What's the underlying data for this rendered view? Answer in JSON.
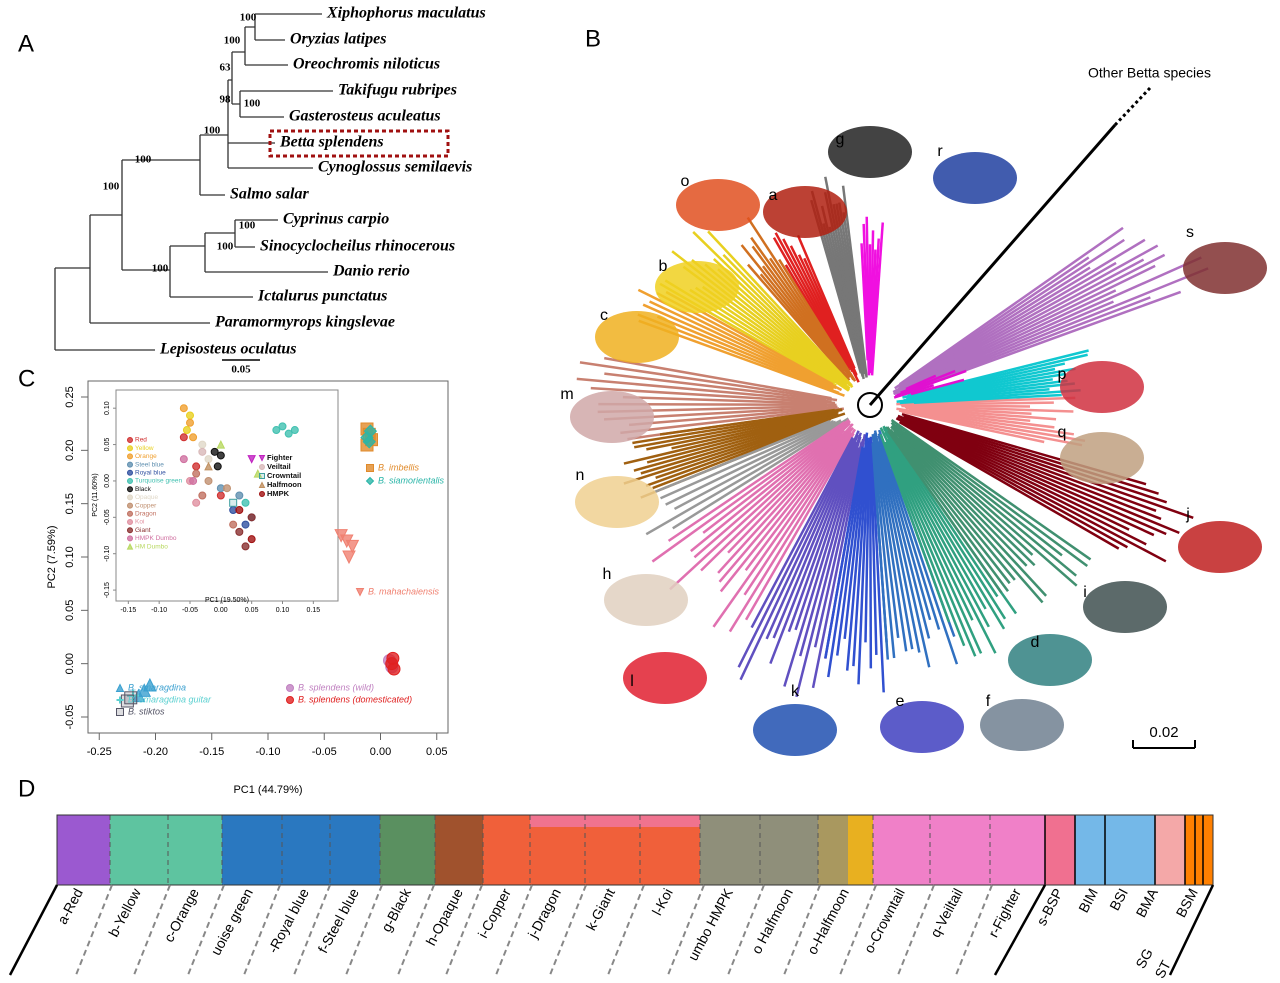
{
  "panels": {
    "A": {
      "label": "A",
      "species": [
        "Xiphophorus maculatus",
        "Oryzias latipes",
        "Oreochromis niloticus",
        "Takifugu rubripes",
        "Gasterosteus aculeatus",
        "Betta splendens",
        "Cynoglossus semilaevis",
        "Salmo salar",
        "Cyprinus carpio",
        "Sinocyclocheilus rhinocerous",
        "Danio rerio",
        "Ictalurus punctatus",
        "Paramormyrops kingslevae",
        "Lepisosteus oculatus"
      ],
      "bootstrap": [
        100,
        100,
        63,
        98,
        100,
        100,
        100,
        100,
        100,
        100,
        100
      ],
      "scale": "0.05"
    },
    "B": {
      "label": "B",
      "other": "Other Betta species",
      "scale": "0.02",
      "clades": [
        "o",
        "a",
        "g",
        "r",
        "s",
        "b",
        "c",
        "m",
        "n",
        "h",
        "l",
        "k",
        "e",
        "f",
        "d",
        "i",
        "j",
        "q",
        "p"
      ]
    },
    "C": {
      "label": "C"
    },
    "D": {
      "label": "D",
      "groups": [
        "a-Red",
        "b-Yellow",
        "c-Orange",
        "uoise green",
        "-Royal blue",
        "f-Steel blue",
        "g-Black",
        "h-Opaque",
        "i-Copper",
        "j-Dragon",
        "k-Giant",
        "l-Koi",
        "umbo HMPK",
        "o Halfmoon",
        "o-Halfmoon",
        "o-Crowntail",
        "q-Veiltail",
        "r-Fighter",
        "s-BSP",
        "BIM",
        "BSI",
        "BMA",
        "BSM",
        "SG",
        "ST"
      ]
    }
  },
  "chart_data": {
    "type": "scatter",
    "xlabel": "PC1 (44.79%)",
    "ylabel": "PC2 (7.59%)",
    "xlim": [
      -0.26,
      0.06
    ],
    "ylim": [
      -0.065,
      0.265
    ],
    "xticks": [
      -0.25,
      {
        "value": -0.2,
        "label": "-0.20"
      },
      -0.15,
      {
        "value": -0.1,
        "label": "-0.10"
      },
      -0.05,
      {
        "value": 0,
        "label": "0.00"
      },
      0.05
    ],
    "yticks": [
      -0.05,
      {
        "value": 0,
        "label": "0.00"
      },
      0.05,
      {
        "value": 0.1,
        "label": "0.10"
      },
      0.15,
      {
        "value": 0.2,
        "label": "0.20"
      },
      0.25
    ],
    "series": [
      {
        "name": "B. imbellis",
        "color": "#e08a2a",
        "marker": "square",
        "x": [
          -0.012,
          -0.01,
          -0.008,
          -0.012
        ],
        "y": [
          0.205,
          0.215,
          0.21,
          0.22
        ]
      },
      {
        "name": "B. siamorientalis",
        "color": "#2ab5a8",
        "marker": "diamond",
        "x": [
          -0.01,
          -0.012,
          -0.009
        ],
        "y": [
          0.208,
          0.212,
          0.218
        ]
      },
      {
        "name": "B. mahachaiensis",
        "color": "#f08070",
        "marker": "tridown",
        "x": [
          -0.035,
          -0.03,
          -0.025,
          -0.028
        ],
        "y": [
          0.12,
          0.115,
          0.11,
          0.1
        ]
      },
      {
        "name": "B. smaragdina",
        "color": "#3aa0d0",
        "marker": "triup",
        "x": [
          -0.21,
          -0.205,
          -0.215
        ],
        "y": [
          -0.025,
          -0.02,
          -0.03
        ]
      },
      {
        "name": "B. smaragdina guitar",
        "color": "#5ad0d0",
        "marker": "plus",
        "x": [
          -0.22
        ],
        "y": [
          -0.03
        ]
      },
      {
        "name": "B. stiktos",
        "color": "#556",
        "marker": "xsquare",
        "x": [
          -0.225,
          -0.222
        ],
        "y": [
          -0.035,
          -0.032
        ]
      },
      {
        "name": "B. splendens (wild)",
        "color": "#c080c0",
        "marker": "circle",
        "x": [
          0.008,
          0.01
        ],
        "y": [
          0.003,
          -0.003
        ]
      },
      {
        "name": "B. splendens (domesticated)",
        "color": "#e02020",
        "marker": "circle",
        "x": [
          0.01,
          0.012,
          0.011
        ],
        "y": [
          0,
          -0.005,
          0.005
        ]
      }
    ],
    "inset": {
      "xlabel": "PC1 (19.50%)",
      "ylabel": "PC2 (11.60%)",
      "xlim": [
        -0.17,
        0.19
      ],
      "ylim": [
        -0.165,
        0.125
      ],
      "xticks": [
        -0.15,
        {
          "value": -0.1,
          "label": "-0.10"
        },
        -0.05,
        {
          "value": 0,
          "label": "0.00"
        },
        0.05,
        {
          "value": 0.1,
          "label": "0.10"
        },
        0.15
      ],
      "yticks": [
        -0.15,
        {
          "value": -0.1,
          "label": "-0.10"
        },
        -0.05,
        {
          "value": 0,
          "label": "0.00"
        },
        0.05,
        {
          "value": 0.1,
          "label": "0.10"
        }
      ],
      "series": [
        {
          "name": "Red",
          "color": "#d03030",
          "marker": "circle",
          "x": [
            -0.06,
            -0.04,
            0.0
          ],
          "y": [
            0.06,
            0.02,
            -0.02
          ]
        },
        {
          "name": "Yellow",
          "color": "#e8d020",
          "marker": "circle",
          "x": [
            -0.05,
            -0.055
          ],
          "y": [
            0.09,
            0.07
          ]
        },
        {
          "name": "Orange",
          "color": "#f0a030",
          "marker": "circle",
          "x": [
            -0.06,
            -0.05,
            -0.045
          ],
          "y": [
            0.1,
            0.08,
            0.06
          ]
        },
        {
          "name": "Steel blue",
          "color": "#6090b0",
          "marker": "circle",
          "x": [
            0.0,
            0.03,
            0.05
          ],
          "y": [
            -0.01,
            -0.02,
            -0.05
          ]
        },
        {
          "name": "Royal blue",
          "color": "#3050a0",
          "marker": "circle",
          "x": [
            0.02,
            0.04
          ],
          "y": [
            -0.04,
            -0.06
          ]
        },
        {
          "name": "Turquoise green",
          "color": "#40c0b0",
          "marker": "circle",
          "x": [
            0.09,
            0.1,
            0.12,
            0.11,
            0.04
          ],
          "y": [
            0.07,
            0.075,
            0.07,
            0.065,
            -0.03
          ]
        },
        {
          "name": "Black",
          "color": "#111111",
          "marker": "circle",
          "x": [
            -0.01,
            0.0,
            -0.005
          ],
          "y": [
            0.04,
            0.035,
            0.02
          ]
        },
        {
          "name": "Opaque",
          "color": "#e0d8c8",
          "marker": "circle",
          "x": [
            -0.03,
            -0.02
          ],
          "y": [
            0.05,
            0.03
          ]
        },
        {
          "name": "Copper",
          "color": "#c09070",
          "marker": "circle",
          "x": [
            -0.02,
            0.01
          ],
          "y": [
            0.0,
            -0.01
          ]
        },
        {
          "name": "Dragon",
          "color": "#c07060",
          "marker": "circle",
          "x": [
            -0.04,
            -0.03,
            0.02
          ],
          "y": [
            0.01,
            -0.02,
            -0.06
          ]
        },
        {
          "name": "Koi",
          "color": "#e090a0",
          "marker": "circle",
          "x": [
            -0.05,
            -0.04
          ],
          "y": [
            0.0,
            -0.03
          ]
        },
        {
          "name": "Giant",
          "color": "#8a3030",
          "marker": "circle",
          "x": [
            0.03,
            0.05,
            0.04
          ],
          "y": [
            -0.07,
            -0.05,
            -0.09
          ]
        },
        {
          "name": "HMPK Dumbo",
          "color": "#d070a0",
          "marker": "circle",
          "x": [
            -0.06,
            -0.045
          ],
          "y": [
            0.03,
            0.0
          ]
        },
        {
          "name": "HM Dumbo",
          "color": "#b8d860",
          "marker": "triup",
          "x": [
            0.0,
            0.06
          ],
          "y": [
            0.05,
            0.01
          ]
        },
        {
          "name": "Fighter",
          "color": "#c020c0",
          "marker": "tridown",
          "x": [
            0.05
          ],
          "y": [
            0.03
          ]
        },
        {
          "name": "Veiltail",
          "color": "#d8b8b8",
          "marker": "circle",
          "x": [
            -0.03
          ],
          "y": [
            0.04
          ]
        },
        {
          "name": "Crowntail",
          "color": "#40a0a0",
          "marker": "xsquare",
          "x": [
            0.02
          ],
          "y": [
            -0.03
          ]
        },
        {
          "name": "Halfmoon",
          "color": "#c09060",
          "marker": "triup",
          "x": [
            -0.02
          ],
          "y": [
            0.02
          ]
        },
        {
          "name": "HMPK",
          "color": "#a01010",
          "marker": "circle",
          "x": [
            0.03,
            0.05
          ],
          "y": [
            -0.04,
            -0.08
          ]
        }
      ]
    }
  }
}
